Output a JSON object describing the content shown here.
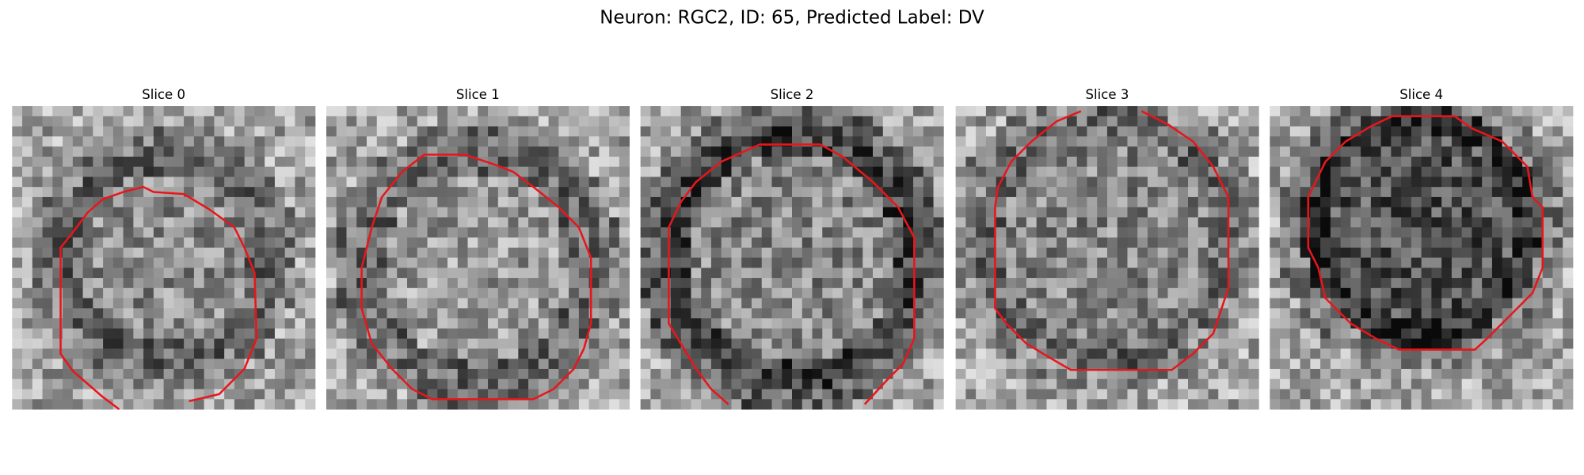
{
  "title": "Neuron: RGC2, ID: 65, Predicted Label: DV",
  "panels": [
    {
      "title": "Slice 0"
    },
    {
      "title": "Slice 1"
    },
    {
      "title": "Slice 2"
    },
    {
      "title": "Slice 3"
    },
    {
      "title": "Slice 4"
    }
  ]
}
